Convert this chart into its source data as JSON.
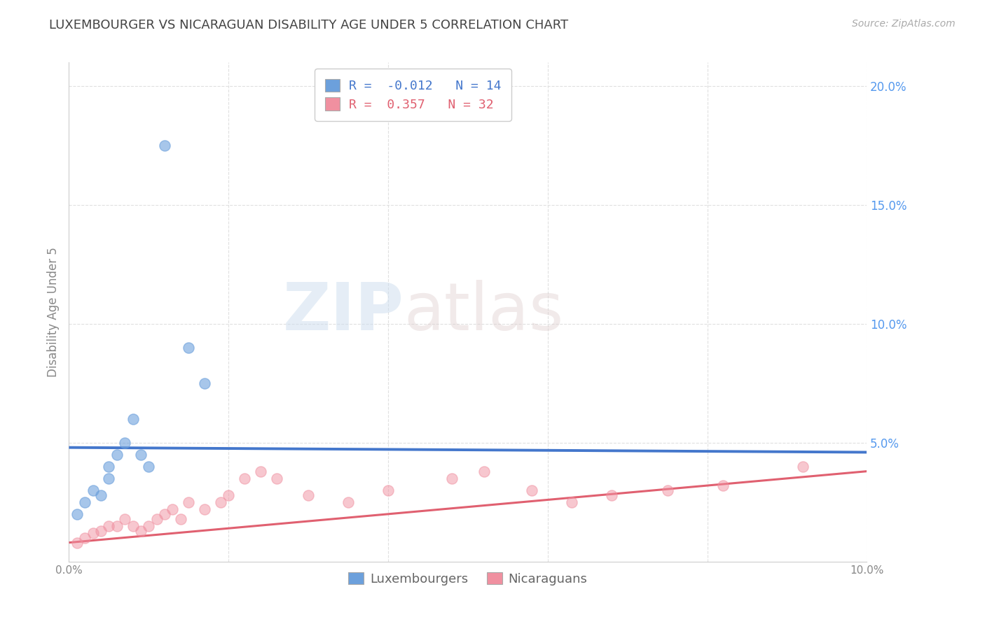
{
  "title": "LUXEMBOURGER VS NICARAGUAN DISABILITY AGE UNDER 5 CORRELATION CHART",
  "source": "Source: ZipAtlas.com",
  "ylabel": "Disability Age Under 5",
  "xlim": [
    0.0,
    0.1
  ],
  "ylim": [
    0.0,
    0.21
  ],
  "xticks": [
    0.0,
    0.02,
    0.04,
    0.06,
    0.08,
    0.1
  ],
  "xticklabels": [
    "0.0%",
    "",
    "",
    "",
    "",
    "10.0%"
  ],
  "yticks": [
    0.0,
    0.05,
    0.1,
    0.15,
    0.2
  ],
  "yticklabels": [
    "",
    "5.0%",
    "10.0%",
    "15.0%",
    "20.0%"
  ],
  "lux_color": "#6ca0dc",
  "lux_edge_color": "#6ca0dc",
  "nic_color": "#f090a0",
  "nic_edge_color": "#f090a0",
  "lux_scatter_x": [
    0.001,
    0.002,
    0.003,
    0.004,
    0.005,
    0.005,
    0.006,
    0.007,
    0.008,
    0.009,
    0.01,
    0.012,
    0.015,
    0.017
  ],
  "lux_scatter_y": [
    0.02,
    0.025,
    0.03,
    0.028,
    0.035,
    0.04,
    0.045,
    0.05,
    0.06,
    0.045,
    0.04,
    0.175,
    0.09,
    0.075
  ],
  "nic_scatter_x": [
    0.001,
    0.002,
    0.003,
    0.004,
    0.005,
    0.006,
    0.007,
    0.008,
    0.009,
    0.01,
    0.011,
    0.012,
    0.013,
    0.014,
    0.015,
    0.017,
    0.019,
    0.02,
    0.022,
    0.024,
    0.026,
    0.03,
    0.035,
    0.04,
    0.048,
    0.052,
    0.058,
    0.063,
    0.068,
    0.075,
    0.082,
    0.092
  ],
  "nic_scatter_y": [
    0.008,
    0.01,
    0.012,
    0.013,
    0.015,
    0.015,
    0.018,
    0.015,
    0.013,
    0.015,
    0.018,
    0.02,
    0.022,
    0.018,
    0.025,
    0.022,
    0.025,
    0.028,
    0.035,
    0.038,
    0.035,
    0.028,
    0.025,
    0.03,
    0.035,
    0.038,
    0.03,
    0.025,
    0.028,
    0.03,
    0.032,
    0.04
  ],
  "lux_R": -0.012,
  "lux_N": 14,
  "nic_R": 0.357,
  "nic_N": 32,
  "lux_trend_x": [
    0.0,
    0.1
  ],
  "lux_trend_y": [
    0.048,
    0.046
  ],
  "nic_trend_x": [
    0.0,
    0.1
  ],
  "nic_trend_y": [
    0.008,
    0.038
  ],
  "watermark_zip": "ZIP",
  "watermark_atlas": "atlas",
  "background_color": "#ffffff",
  "grid_color": "#e0e0e0",
  "title_color": "#444444",
  "axis_label_color": "#888888",
  "ytick_color": "#5599ee",
  "xtick_color": "#888888",
  "scatter_size": 120,
  "lux_trend_color": "#4477cc",
  "nic_trend_color": "#e06070"
}
